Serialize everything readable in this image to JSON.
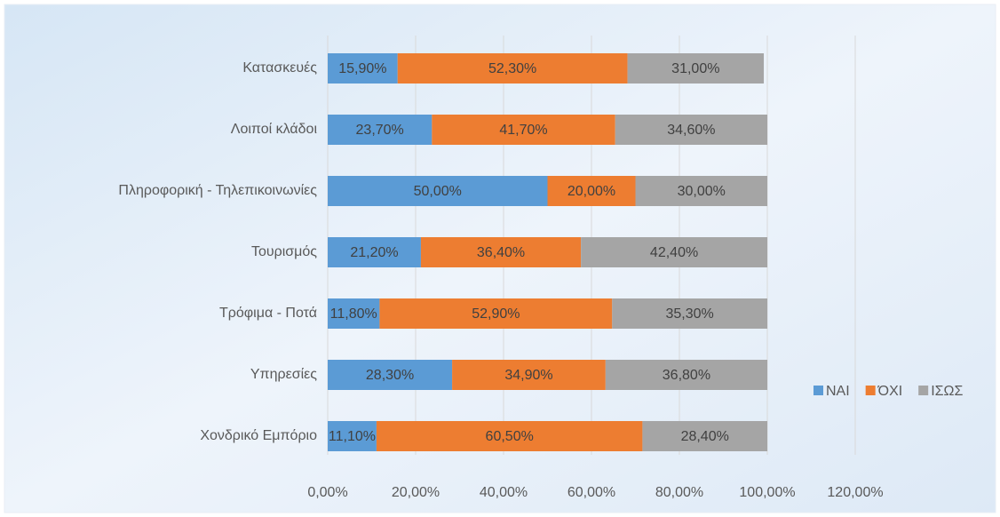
{
  "chart_data": {
    "type": "stacked_barh",
    "categories": [
      "Κατασκευές",
      "Λοιποί κλάδοι",
      "Πληροφορική - Τηλεπικοινωνίες",
      "Τουρισμός",
      "Τρόφιμα - Ποτά",
      "Υπηρεσίες",
      "Χονδρικό Εμπόριο"
    ],
    "series": [
      {
        "name": "ΝΑΙ",
        "color": "#5b9bd5",
        "values": [
          15.9,
          23.7,
          50.0,
          21.2,
          11.8,
          28.3,
          11.1
        ],
        "value_labels": [
          "15,90%",
          "23,70%",
          "50,00%",
          "21,20%",
          "11,80%",
          "28,30%",
          "11,10%"
        ]
      },
      {
        "name": "ΌΧΙ",
        "color": "#ed7d31",
        "values": [
          52.3,
          41.7,
          20.0,
          36.4,
          52.9,
          34.9,
          60.5
        ],
        "value_labels": [
          "52,30%",
          "41,70%",
          "20,00%",
          "36,40%",
          "52,90%",
          "34,90%",
          "60,50%"
        ]
      },
      {
        "name": "ΙΣΩΣ",
        "color": "#a5a5a5",
        "values": [
          31.0,
          34.6,
          30.0,
          42.4,
          35.3,
          36.8,
          28.4
        ],
        "value_labels": [
          "31,00%",
          "34,60%",
          "30,00%",
          "42,40%",
          "35,30%",
          "36,80%",
          "28,40%"
        ]
      }
    ],
    "xlim": [
      0,
      120
    ],
    "xticks": [
      {
        "value": 0,
        "label": "0,00%"
      },
      {
        "value": 20,
        "label": "20,00%"
      },
      {
        "value": 40,
        "label": "40,00%"
      },
      {
        "value": 60,
        "label": "60,00%"
      },
      {
        "value": 80,
        "label": "80,00%"
      },
      {
        "value": 100,
        "label": "100,00%"
      },
      {
        "value": 120,
        "label": "120,00%"
      }
    ],
    "grid": true,
    "legend": "right"
  }
}
